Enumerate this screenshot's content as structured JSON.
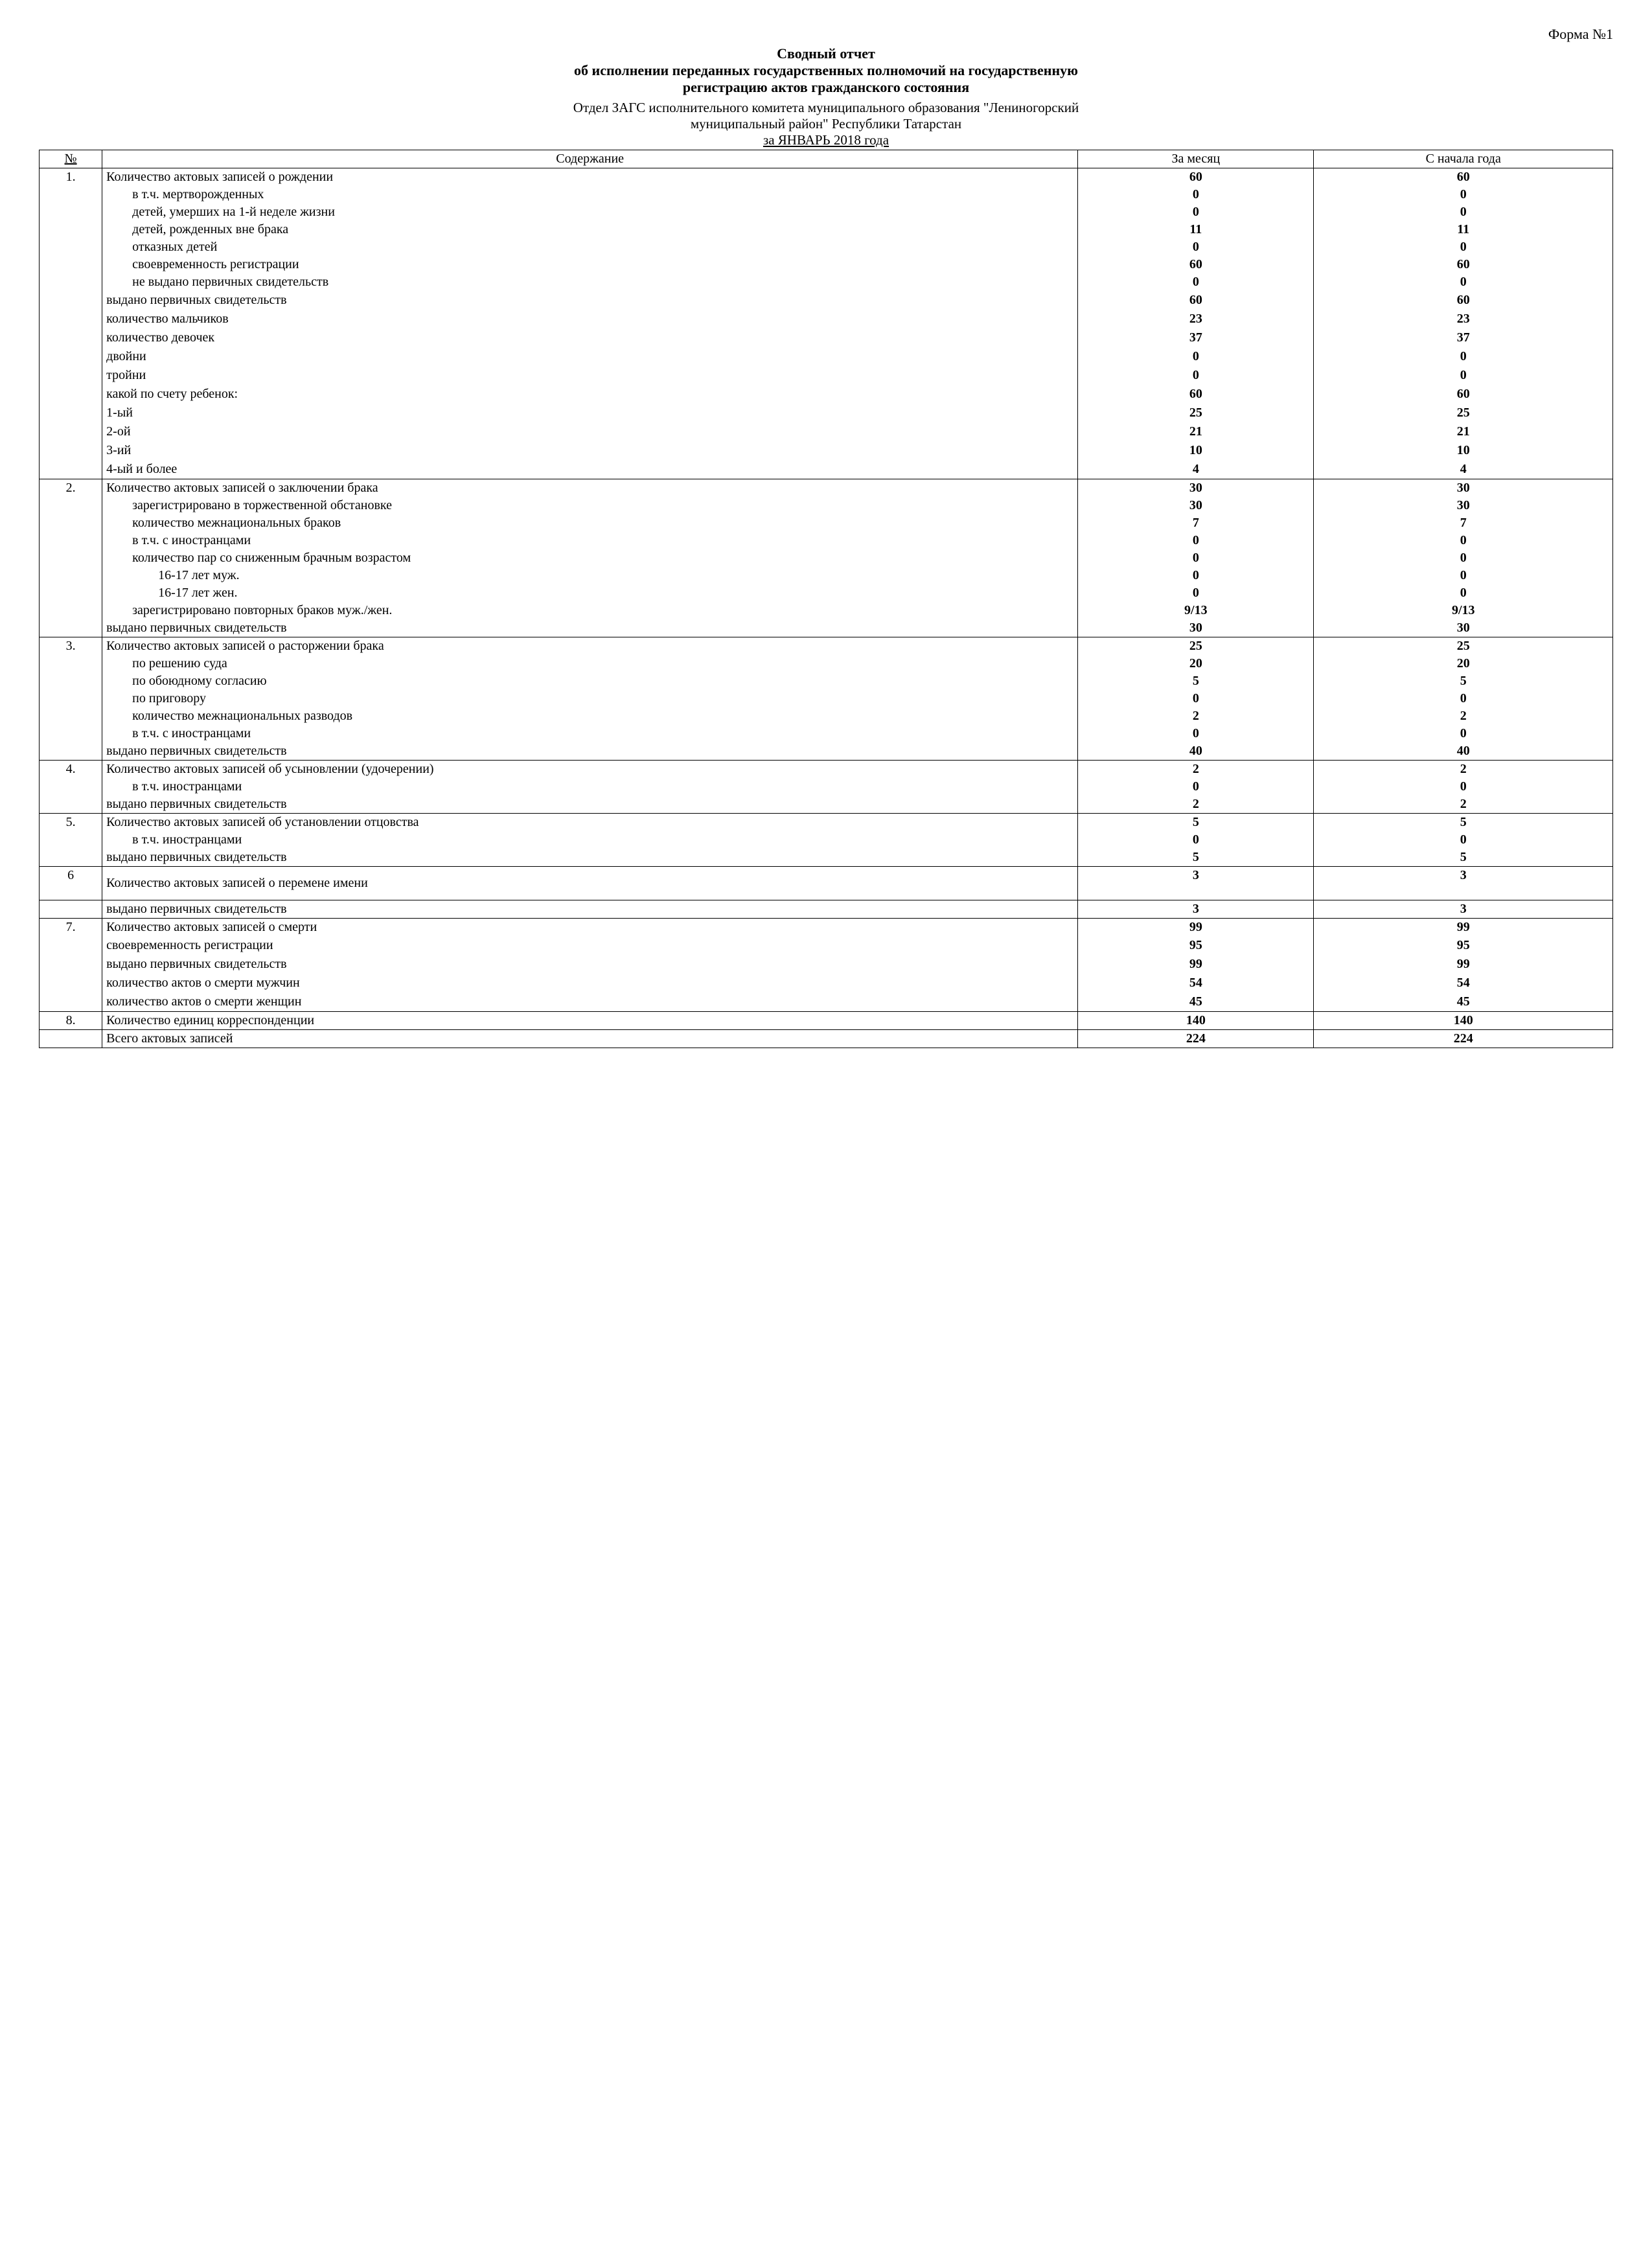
{
  "form_label": "Форма №1",
  "title_main": "Сводный отчет",
  "title_sub1": "об исполнении переданных государственных полномочий на государственную",
  "title_sub2": "регистрацию актов гражданского состояния",
  "org_line1": "Отдел ЗАГС исполнительного комитета муниципального образования \"Лениногорский",
  "org_line2": "муниципальный район\" Республики Татарстан",
  "period": "за ЯНВАРЬ 2018 года",
  "headers": {
    "num": "№",
    "content": "Содержание",
    "month": "За месяц",
    "year": "С начала года"
  },
  "rows": [
    {
      "num": "1.",
      "text": "Количество актовых записей о рождении",
      "month": "60",
      "year": "60",
      "indent": 0,
      "section_start": true
    },
    {
      "text": "в т.ч. мертворожденных",
      "month": "0",
      "year": "0",
      "indent": 1
    },
    {
      "text": "детей, умерших на 1-й неделе жизни",
      "month": "0",
      "year": "0",
      "indent": 1
    },
    {
      "text": "детей, рожденных вне брака",
      "month": "11",
      "year": "11",
      "indent": 1
    },
    {
      "text": "отказных детей",
      "month": "0",
      "year": "0",
      "indent": 1
    },
    {
      "text": "своевременность регистрации",
      "month": "60",
      "year": "60",
      "indent": 1
    },
    {
      "text": "не выдано первичных свидетельств",
      "month": "0",
      "year": "0",
      "indent": 1
    },
    {
      "text": "выдано первичных свидетельств",
      "month": "60",
      "year": "60",
      "indent": 0,
      "tight": true
    },
    {
      "text": "количество мальчиков",
      "month": "23",
      "year": "23",
      "indent": 0,
      "tight": true
    },
    {
      "text": "количество девочек",
      "month": "37",
      "year": "37",
      "indent": 0,
      "tight": true
    },
    {
      "text": "двойни",
      "month": "0",
      "year": "0",
      "indent": 0,
      "tight": true
    },
    {
      "text": "тройни",
      "month": "0",
      "year": "0",
      "indent": 0,
      "tight": true
    },
    {
      "text": "какой по счету ребенок:",
      "month": "60",
      "year": "60",
      "indent": 0,
      "tight": true
    },
    {
      "text": "1-ый",
      "month": "25",
      "year": "25",
      "indent": 0,
      "tight": true
    },
    {
      "text": "2-ой",
      "month": "21",
      "year": "21",
      "indent": 0,
      "tight": true
    },
    {
      "text": "3-ий",
      "month": "10",
      "year": "10",
      "indent": 0,
      "tight": true
    },
    {
      "text": "4-ый и более",
      "month": "4",
      "year": "4",
      "indent": 0,
      "tight": true,
      "section_end": true
    },
    {
      "num": "2.",
      "text": "Количество актовых записей о заключении брака",
      "month": "30",
      "year": "30",
      "indent": 0,
      "section_start": true
    },
    {
      "text": "зарегистрировано в торжественной обстановке",
      "month": "30",
      "year": "30",
      "indent": 1
    },
    {
      "text": "количество межнациональных браков",
      "month": "7",
      "year": "7",
      "indent": 1
    },
    {
      "text": "в т.ч. с иностранцами",
      "month": "0",
      "year": "0",
      "indent": 1
    },
    {
      "text": "количество пар со сниженным брачным возрастом",
      "month": "0",
      "year": "0",
      "indent": 1
    },
    {
      "text": "16-17 лет муж.",
      "month": "0",
      "year": "0",
      "indent": 2
    },
    {
      "text": "16-17 лет жен.",
      "month": "0",
      "year": "0",
      "indent": 2
    },
    {
      "text": "зарегистрировано повторных браков муж./жен.",
      "month": "9/13",
      "year": "9/13",
      "indent": 1
    },
    {
      "text": "выдано первичных свидетельств",
      "month": "30",
      "year": "30",
      "indent": 0,
      "section_end": true
    },
    {
      "num": "3.",
      "text": "Количество актовых записей о расторжении брака",
      "month": "25",
      "year": "25",
      "indent": 0,
      "section_start": true
    },
    {
      "text": "по решению суда",
      "month": "20",
      "year": "20",
      "indent": 1
    },
    {
      "text": "по обоюдному согласию",
      "month": "5",
      "year": "5",
      "indent": 1
    },
    {
      "text": "по приговору",
      "month": "0",
      "year": "0",
      "indent": 1
    },
    {
      "text": "количество межнациональных разводов",
      "month": "2",
      "year": "2",
      "indent": 1
    },
    {
      "text": "в т.ч. с иностранцами",
      "month": "0",
      "year": "0",
      "indent": 1
    },
    {
      "text": "выдано первичных свидетельств",
      "month": "40",
      "year": "40",
      "indent": 0,
      "section_end": true
    },
    {
      "num": "4.",
      "text": "Количество актовых записей об усыновлении (удочерении)",
      "month": "2",
      "year": "2",
      "indent": 0,
      "section_start": true
    },
    {
      "text": "в т.ч. иностранцами",
      "month": "0",
      "year": "0",
      "indent": 1
    },
    {
      "text": "выдано первичных свидетельств",
      "month": "2",
      "year": "2",
      "indent": 0,
      "section_end": true
    },
    {
      "num": "5.",
      "text": "Количество актовых записей об установлении отцовства",
      "month": "5",
      "year": "5",
      "indent": 0,
      "section_start": true
    },
    {
      "text": "в т.ч. иностранцами",
      "month": "0",
      "year": "0",
      "indent": 1
    },
    {
      "text": "выдано первичных свидетельств",
      "month": "5",
      "year": "5",
      "indent": 0,
      "section_end": true
    },
    {
      "num": "6",
      "text": "Количество актовых записей о перемене имени",
      "month": "3",
      "year": "3",
      "indent": 0,
      "section_start": true,
      "section_end": true,
      "pad": true
    },
    {
      "text": "выдано первичных свидетельств",
      "month": "3",
      "year": "3",
      "indent": 0,
      "section_start": true,
      "section_end": true
    },
    {
      "num": "7.",
      "text": "Количество актовых записей о смерти",
      "month": "99",
      "year": "99",
      "indent": 0,
      "section_start": true
    },
    {
      "text": "своевременность регистрации",
      "month": "95",
      "year": "95",
      "indent": 0,
      "tight": true
    },
    {
      "text": "выдано первичных свидетельств",
      "month": "99",
      "year": "99",
      "indent": 0,
      "tight": true
    },
    {
      "text": "количество актов о смерти мужчин",
      "month": "54",
      "year": "54",
      "indent": 0,
      "tight": true
    },
    {
      "text": "количество актов о смерти женщин",
      "month": "45",
      "year": "45",
      "indent": 0,
      "tight": true,
      "section_end": true
    },
    {
      "num": "8.",
      "text": "Количество единиц корреспонденции",
      "month": "140",
      "year": "140",
      "indent": 0,
      "section_start": true,
      "section_end": true
    },
    {
      "text": "Всего актовых записей",
      "month": "224",
      "year": "224",
      "indent": 0,
      "section_start": true,
      "section_end": true
    }
  ]
}
